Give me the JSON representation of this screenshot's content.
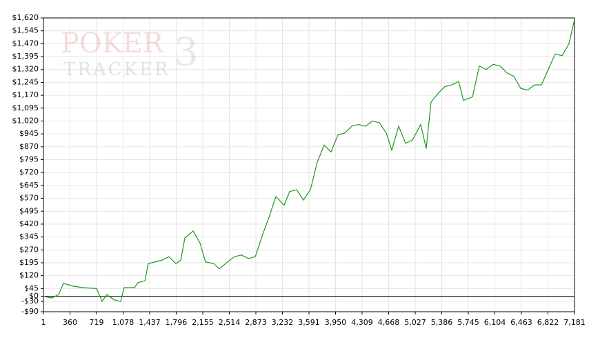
{
  "chart_data": {
    "type": "line",
    "watermark": {
      "top": "POKER",
      "bottom": "TRACKER",
      "mark": "3"
    },
    "x": [
      1,
      113,
      206,
      271,
      393,
      533,
      719,
      794,
      859,
      952,
      1045,
      1092,
      1232,
      1279,
      1372,
      1418,
      1512,
      1605,
      1698,
      1791,
      1857,
      1913,
      2025,
      2118,
      2192,
      2304,
      2379,
      2491,
      2584,
      2677,
      2771,
      2864,
      2957,
      3050,
      3144,
      3255,
      3330,
      3423,
      3516,
      3610,
      3703,
      3796,
      3889,
      3983,
      4076,
      4169,
      4263,
      4356,
      4449,
      4542,
      4636,
      4710,
      4803,
      4897,
      4990,
      5102,
      5176,
      5241,
      5335,
      5428,
      5521,
      5614,
      5680,
      5801,
      5894,
      5987,
      6080,
      6174,
      6267,
      6360,
      6454,
      6547,
      6640,
      6733,
      6826,
      6920,
      7013,
      7106,
      7181
    ],
    "series": [
      {
        "color": "#1a9a1a",
        "values": [
          0,
          -10,
          10,
          75,
          60,
          50,
          45,
          -30,
          10,
          -20,
          -30,
          50,
          50,
          80,
          90,
          190,
          200,
          210,
          230,
          190,
          210,
          340,
          380,
          310,
          200,
          190,
          160,
          200,
          230,
          240,
          220,
          230,
          350,
          460,
          580,
          530,
          610,
          620,
          560,
          620,
          780,
          880,
          840,
          940,
          950,
          990,
          1000,
          990,
          1020,
          1010,
          950,
          850,
          990,
          890,
          910,
          1000,
          860,
          1130,
          1180,
          1220,
          1230,
          1250,
          1140,
          1160,
          1340,
          1320,
          1350,
          1340,
          1300,
          1280,
          1210,
          1200,
          1230,
          1230,
          1320,
          1410,
          1400,
          1470,
          1610
        ]
      }
    ],
    "xlim": [
      1,
      7181
    ],
    "xticks": [
      1,
      360,
      719,
      {
        "value": 1078,
        "label": "1,078"
      },
      {
        "value": 1437,
        "label": "1,437"
      },
      {
        "value": 1796,
        "label": "1,796"
      },
      {
        "value": 2155,
        "label": "2,155"
      },
      {
        "value": 2514,
        "label": "2,514"
      },
      {
        "value": 2873,
        "label": "2,873"
      },
      {
        "value": 3232,
        "label": "3,232"
      },
      {
        "value": 3591,
        "label": "3,591"
      },
      {
        "value": 3950,
        "label": "3,950"
      },
      {
        "value": 4309,
        "label": "4,309"
      },
      {
        "value": 4668,
        "label": "4,668"
      },
      {
        "value": 5027,
        "label": "5,027"
      },
      {
        "value": 5386,
        "label": "5,386"
      },
      {
        "value": 5745,
        "label": "5,745"
      },
      {
        "value": 6104,
        "label": "6,104"
      },
      {
        "value": 6463,
        "label": "6,463"
      },
      {
        "value": 6822,
        "label": "6,822"
      },
      {
        "value": 7181,
        "label": "7,181"
      }
    ],
    "ylim": [
      -90,
      1620
    ],
    "yticks": [
      {
        "value": -90,
        "label": "-$90"
      },
      {
        "value": -30,
        "label": "-$30"
      },
      {
        "value": 0,
        "label": "$0"
      },
      {
        "value": 45,
        "label": "$45"
      },
      {
        "value": 120,
        "label": "$120"
      },
      {
        "value": 195,
        "label": "$195"
      },
      {
        "value": 270,
        "label": "$270"
      },
      {
        "value": 345,
        "label": "$345"
      },
      {
        "value": 420,
        "label": "$420"
      },
      {
        "value": 495,
        "label": "$495"
      },
      {
        "value": 570,
        "label": "$570"
      },
      {
        "value": 645,
        "label": "$645"
      },
      {
        "value": 720,
        "label": "$720"
      },
      {
        "value": 795,
        "label": "$795"
      },
      {
        "value": 870,
        "label": "$870"
      },
      {
        "value": 945,
        "label": "$945"
      },
      {
        "value": 1020,
        "label": "$1,020"
      },
      {
        "value": 1095,
        "label": "$1,095"
      },
      {
        "value": 1170,
        "label": "$1,170"
      },
      {
        "value": 1245,
        "label": "$1,245"
      },
      {
        "value": 1320,
        "label": "$1,320"
      },
      {
        "value": 1395,
        "label": "$1,395"
      },
      {
        "value": 1470,
        "label": "$1,470"
      },
      {
        "value": 1545,
        "label": "$1,545"
      },
      {
        "value": 1620,
        "label": "$1,620"
      }
    ],
    "grid": true
  }
}
